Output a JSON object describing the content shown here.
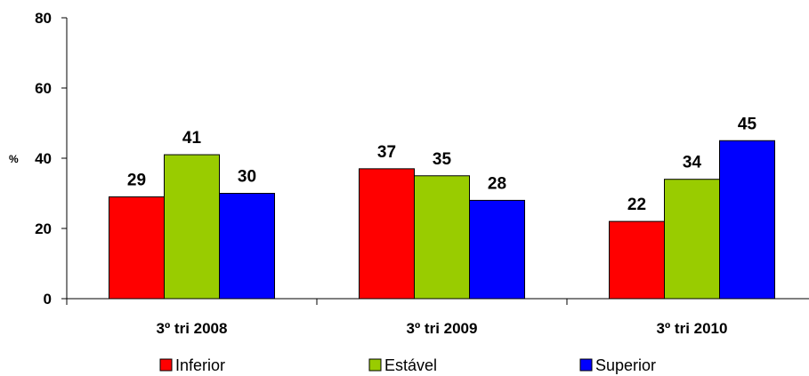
{
  "chart_data": {
    "type": "bar",
    "categories": [
      "3º tri 2008",
      "3º tri 2009",
      "3º tri 2010"
    ],
    "series": [
      {
        "name": "Inferior",
        "values": [
          29,
          37,
          22
        ],
        "color": "#ff0000"
      },
      {
        "name": "Estável",
        "values": [
          41,
          35,
          34
        ],
        "color": "#99cc00"
      },
      {
        "name": "Superior",
        "values": [
          30,
          28,
          45
        ],
        "color": "#0000ff"
      }
    ],
    "data_labels": [
      [
        "29",
        "37",
        "22"
      ],
      [
        "41",
        "35",
        "34"
      ],
      [
        "30",
        "28",
        "45"
      ]
    ],
    "ylabel": "%",
    "ylim": [
      0,
      80
    ],
    "yticks": [
      "0",
      "20",
      "40",
      "60",
      "80"
    ],
    "grid": false,
    "legend_position": "bottom"
  }
}
